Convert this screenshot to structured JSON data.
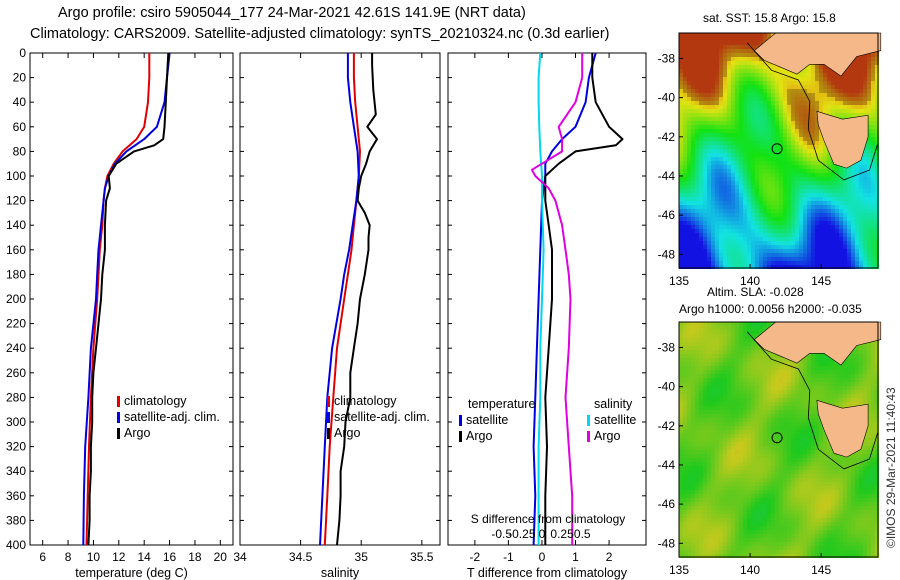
{
  "header": {
    "line1": "Argo profile: csiro 5905044_177 24-Mar-2021 42.61S 141.9E (NRT data)",
    "line2": "Climatology: CARS2009. Satellite-adjusted climatology: synTS_20210324.nc (0.3d earlier)"
  },
  "watermark": "©IMOS 29-Mar-2021 11:40:43",
  "colors": {
    "climatology": "#e00000",
    "satellite": "#0000e0",
    "argo": "#000000",
    "sat_salinity": "#00d8f0",
    "argo_salinity": "#e000e0"
  },
  "chart_data": [
    {
      "type": "line",
      "id": "temperature",
      "xlabel": "temperature (deg C)",
      "xlim": [
        5,
        21
      ],
      "ylim": [
        0,
        400
      ],
      "xticks": [
        6,
        8,
        10,
        12,
        14,
        16,
        18,
        20
      ],
      "yticks": [
        0,
        20,
        40,
        60,
        80,
        100,
        120,
        140,
        160,
        180,
        200,
        220,
        240,
        260,
        280,
        300,
        320,
        340,
        360,
        380,
        400
      ],
      "legend": [
        "climatology",
        "satellite-adj. clim.",
        "Argo"
      ],
      "series": [
        {
          "name": "climatology",
          "color": "#e00000",
          "depth": [
            0,
            20,
            40,
            60,
            70,
            80,
            90,
            100,
            110,
            120,
            140,
            160,
            180,
            200,
            240,
            280,
            320,
            360,
            400
          ],
          "values": [
            14.4,
            14.4,
            14.3,
            14.0,
            13.4,
            12.3,
            11.6,
            11.1,
            10.9,
            10.8,
            10.7,
            10.5,
            10.4,
            10.3,
            10.0,
            9.8,
            9.65,
            9.55,
            9.45
          ]
        },
        {
          "name": "satellite-adj. clim.",
          "color": "#0000e0",
          "depth": [
            0,
            20,
            40,
            60,
            70,
            80,
            90,
            100,
            110,
            120,
            140,
            160,
            180,
            200,
            240,
            280,
            320,
            360,
            400
          ],
          "values": [
            16.0,
            15.8,
            15.6,
            15.0,
            14.0,
            12.6,
            11.7,
            11.2,
            10.9,
            10.8,
            10.6,
            10.4,
            10.3,
            10.2,
            9.8,
            9.6,
            9.35,
            9.25,
            9.2
          ]
        },
        {
          "name": "Argo",
          "color": "#000000",
          "depth": [
            0,
            20,
            40,
            60,
            70,
            75,
            80,
            90,
            100,
            110,
            120,
            140,
            160,
            180,
            200,
            220,
            240,
            260,
            280,
            300,
            320,
            340,
            360,
            380,
            400
          ],
          "values": [
            15.9,
            15.8,
            15.7,
            15.6,
            15.5,
            14.8,
            13.2,
            11.8,
            11.2,
            11.3,
            11.0,
            10.9,
            10.9,
            10.7,
            10.6,
            10.4,
            10.2,
            10.0,
            9.9,
            9.9,
            9.8,
            9.8,
            9.7,
            9.7,
            9.6
          ]
        }
      ]
    },
    {
      "type": "line",
      "id": "salinity",
      "xlabel": "salinity",
      "xlim": [
        34.0,
        35.65
      ],
      "ylim": [
        0,
        400
      ],
      "xticks": [
        34,
        34.5,
        35,
        35.5
      ],
      "legend": [
        "climatology",
        "satellite-adj. clim.",
        "Argo"
      ],
      "series": [
        {
          "name": "climatology",
          "color": "#e00000",
          "depth": [
            0,
            20,
            40,
            60,
            80,
            100,
            120,
            140,
            160,
            180,
            200,
            240,
            280,
            320,
            360,
            400
          ],
          "values": [
            34.94,
            34.94,
            34.95,
            34.97,
            34.99,
            34.98,
            34.96,
            34.94,
            34.92,
            34.89,
            34.86,
            34.8,
            34.77,
            34.74,
            34.72,
            34.7
          ]
        },
        {
          "name": "satellite-adj. clim.",
          "color": "#0000e0",
          "depth": [
            0,
            20,
            40,
            60,
            80,
            100,
            120,
            140,
            160,
            180,
            200,
            240,
            280,
            320,
            360,
            400
          ],
          "values": [
            34.89,
            34.89,
            34.91,
            34.94,
            34.97,
            34.98,
            34.96,
            34.93,
            34.9,
            34.86,
            34.83,
            34.76,
            34.72,
            34.7,
            34.68,
            34.66
          ]
        },
        {
          "name": "Argo",
          "color": "#000000",
          "depth": [
            0,
            10,
            30,
            50,
            60,
            70,
            80,
            90,
            100,
            110,
            120,
            130,
            140,
            150,
            160,
            180,
            200,
            220,
            240,
            260,
            280,
            300,
            320,
            340,
            360,
            380,
            400
          ],
          "values": [
            35.09,
            35.09,
            35.1,
            35.12,
            35.05,
            35.13,
            35.07,
            35.04,
            35.0,
            34.98,
            34.97,
            35.03,
            35.07,
            35.06,
            35.06,
            35.03,
            34.99,
            34.97,
            34.94,
            34.91,
            34.91,
            34.87,
            34.86,
            34.83,
            34.83,
            34.82,
            34.8
          ]
        }
      ]
    },
    {
      "type": "line",
      "id": "difference",
      "xlabel": "T difference from climatology",
      "xlabel2": "S difference from climatology",
      "xlim": [
        -2.8,
        3.1
      ],
      "ylim": [
        0,
        400
      ],
      "xticks": [
        -2,
        -1,
        0,
        1,
        2
      ],
      "xticklabels": [
        "-2",
        "-1",
        "0",
        "1",
        "2"
      ],
      "sticks": [
        -1.2,
        -0.6,
        0,
        0.6,
        1.2
      ],
      "sticklabels": [
        "-0.5",
        "-0.25",
        "0",
        "0.25",
        "0.5"
      ],
      "legend_t": {
        "title": "temperature",
        "items": [
          "satellite",
          "Argo"
        ]
      },
      "legend_s": {
        "title": "salinity",
        "items": [
          "satellite",
          "Argo"
        ]
      },
      "series": [
        {
          "name": "T satellite",
          "color": "#0000e0",
          "depth": [
            0,
            20,
            40,
            60,
            70,
            80,
            90,
            100,
            120,
            160,
            200,
            240,
            280,
            320,
            360,
            400
          ],
          "values": [
            1.6,
            1.4,
            1.3,
            1.0,
            0.6,
            0.3,
            0.1,
            0.1,
            0.0,
            -0.05,
            -0.1,
            -0.15,
            -0.2,
            -0.25,
            -0.2,
            -0.25
          ]
        },
        {
          "name": "T Argo",
          "color": "#000000",
          "depth": [
            0,
            20,
            40,
            60,
            70,
            75,
            80,
            90,
            100,
            120,
            140,
            160,
            200,
            240,
            280,
            320,
            360,
            400
          ],
          "values": [
            1.5,
            1.5,
            1.6,
            2.0,
            2.4,
            2.2,
            1.0,
            0.5,
            0.1,
            0.1,
            0.2,
            0.3,
            0.3,
            0.2,
            0.1,
            0.15,
            0.1,
            0.1
          ]
        },
        {
          "name": "S satellite",
          "color": "#00d8f0",
          "depth": [
            0,
            20,
            40,
            60,
            80,
            100,
            120,
            160,
            200,
            240,
            280,
            320,
            360,
            400
          ],
          "values": [
            -0.05,
            -0.1,
            -0.1,
            -0.08,
            -0.05,
            0.0,
            0.0,
            0.05,
            0.0,
            -0.05,
            -0.05,
            -0.1,
            -0.1,
            -0.1
          ]
        },
        {
          "name": "S Argo",
          "color": "#e000e0",
          "depth": [
            0,
            20,
            40,
            60,
            70,
            80,
            90,
            95,
            100,
            110,
            120,
            140,
            160,
            180,
            200,
            240,
            280,
            320,
            360,
            400
          ],
          "values": [
            1.2,
            1.2,
            1.0,
            0.5,
            0.6,
            0.6,
            0.0,
            -0.3,
            -0.2,
            0.2,
            0.4,
            0.6,
            0.7,
            0.8,
            0.85,
            0.8,
            0.7,
            0.8,
            0.9,
            0.9
          ]
        }
      ]
    },
    {
      "type": "heatmap",
      "id": "sst-map",
      "title": "sat. SST: 15.8 Argo: 15.8",
      "xticks": [
        135,
        140,
        145
      ],
      "yticks": [
        -38,
        -40,
        -42,
        -44,
        -46,
        -48
      ],
      "xlim": [
        135,
        149
      ],
      "ylim": [
        -48.7,
        -36.7
      ],
      "argo_position": {
        "lon": 141.9,
        "lat": -42.61
      }
    },
    {
      "type": "heatmap",
      "id": "sla-map",
      "title1": "Altim. SLA: -0.028",
      "title2": "Argo h1000: 0.0056 h2000: -0.035",
      "xticks": [
        135,
        140,
        145
      ],
      "yticks": [
        -38,
        -40,
        -42,
        -44,
        -46,
        -48
      ],
      "xlim": [
        135,
        149
      ],
      "ylim": [
        -48.7,
        -36.7
      ],
      "argo_position": {
        "lon": 141.9,
        "lat": -42.61
      }
    }
  ]
}
